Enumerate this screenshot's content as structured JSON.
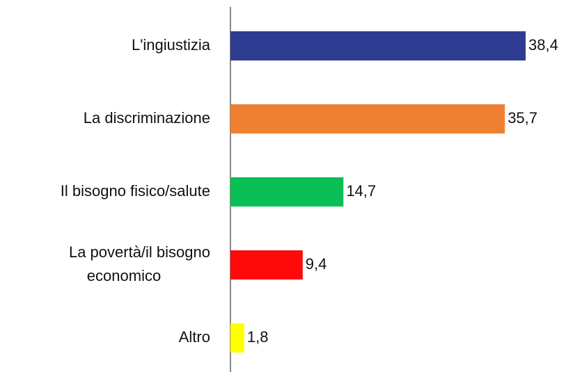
{
  "chart_data": {
    "type": "bar",
    "orientation": "horizontal",
    "categories": [
      "L'ingiustizia",
      "La discriminazione",
      "Il bisogno fisico/salute",
      "La povertà/il bisogno economico",
      "Altro"
    ],
    "values": [
      38.4,
      35.7,
      14.7,
      9.4,
      1.8
    ],
    "value_labels": [
      "38,4",
      "35,7",
      "14,7",
      "9,4",
      "1,8"
    ],
    "colors": [
      "#2e3c92",
      "#ef7f31",
      "#0abf55",
      "#ff0a0a",
      "#ffff00"
    ]
  }
}
